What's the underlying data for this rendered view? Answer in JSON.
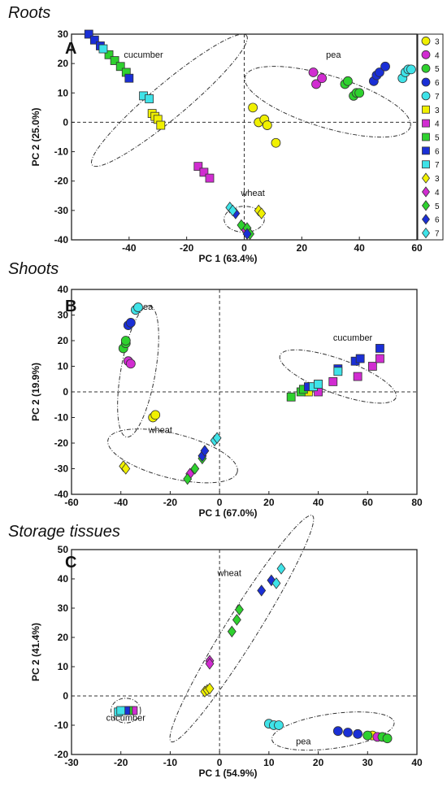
{
  "chart_data": [
    {
      "type": "scatter",
      "title": "Roots",
      "panel": "A",
      "xlabel": "PC 1 (63.4%)",
      "ylabel": "PC 2 (25.0%)",
      "xlim": [
        -60,
        60
      ],
      "ylim": [
        -40,
        30
      ],
      "xticks": [
        -40,
        -20,
        0,
        20,
        40,
        60
      ],
      "yticks": [
        -40,
        -30,
        -20,
        -10,
        0,
        10,
        20,
        30
      ],
      "legend": {
        "placement": "right",
        "entries": [
          {
            "shape": "circle",
            "label": "3"
          },
          {
            "shape": "circle",
            "label": "4"
          },
          {
            "shape": "circle",
            "label": "5"
          },
          {
            "shape": "circle",
            "label": "6"
          },
          {
            "shape": "circle",
            "label": "7"
          },
          {
            "shape": "square",
            "label": "3"
          },
          {
            "shape": "square",
            "label": "4"
          },
          {
            "shape": "square",
            "label": "5"
          },
          {
            "shape": "square",
            "label": "6"
          },
          {
            "shape": "square",
            "label": "7"
          },
          {
            "shape": "diamond",
            "label": "3"
          },
          {
            "shape": "diamond",
            "label": "4"
          },
          {
            "shape": "diamond",
            "label": "5"
          },
          {
            "shape": "diamond",
            "label": "6"
          },
          {
            "shape": "diamond",
            "label": "7"
          }
        ]
      },
      "groups": [
        {
          "label": "cucumber",
          "ellipse": {
            "cx": -26,
            "cy": 7.5,
            "rx": 35,
            "ry": 6,
            "angle": -40
          },
          "label_at": [
            -35,
            22
          ]
        },
        {
          "label": "pea",
          "ellipse": {
            "cx": 29,
            "cy": 7,
            "rx": 30,
            "ry": 9,
            "angle": 17
          },
          "label_at": [
            31,
            22
          ]
        },
        {
          "label": "wheat",
          "ellipse": {
            "cx": 0,
            "cy": -33,
            "rx": 7,
            "ry": 4.5,
            "angle": 0
          },
          "label_at": [
            3,
            -25
          ]
        }
      ],
      "series": [
        {
          "shape": "circle",
          "level": "3",
          "points": [
            [
              3,
              5
            ],
            [
              5,
              0
            ],
            [
              7,
              1
            ],
            [
              8,
              -1
            ],
            [
              11,
              -7
            ]
          ]
        },
        {
          "shape": "circle",
          "level": "4",
          "points": [
            [
              24,
              17
            ],
            [
              25,
              13
            ],
            [
              27,
              15
            ]
          ]
        },
        {
          "shape": "circle",
          "level": "5",
          "points": [
            [
              35,
              13
            ],
            [
              36,
              14
            ],
            [
              38,
              9
            ],
            [
              39,
              10
            ],
            [
              40,
              10
            ]
          ]
        },
        {
          "shape": "circle",
          "level": "6",
          "points": [
            [
              45,
              14
            ],
            [
              46,
              16
            ],
            [
              47,
              17
            ],
            [
              49,
              19
            ]
          ]
        },
        {
          "shape": "circle",
          "level": "7",
          "points": [
            [
              55,
              15
            ],
            [
              56,
              17
            ],
            [
              57,
              18
            ],
            [
              58,
              18
            ]
          ]
        },
        {
          "shape": "square",
          "level": "3",
          "points": [
            [
              -32,
              3
            ],
            [
              -31,
              2
            ],
            [
              -30,
              1
            ],
            [
              -29,
              -1
            ]
          ]
        },
        {
          "shape": "square",
          "level": "4",
          "points": [
            [
              -16,
              -15
            ],
            [
              -14,
              -17
            ],
            [
              -12,
              -19
            ]
          ]
        },
        {
          "shape": "square",
          "level": "5",
          "points": [
            [
              -47,
              23
            ],
            [
              -45,
              21
            ],
            [
              -43,
              19
            ],
            [
              -41,
              17
            ]
          ]
        },
        {
          "shape": "square",
          "level": "6",
          "points": [
            [
              -54,
              30
            ],
            [
              -52,
              28
            ],
            [
              -50,
              26
            ],
            [
              -40,
              15
            ]
          ]
        },
        {
          "shape": "square",
          "level": "7",
          "points": [
            [
              -49,
              25
            ],
            [
              -35,
              9
            ],
            [
              -33,
              8
            ]
          ]
        },
        {
          "shape": "diamond",
          "level": "3",
          "points": [
            [
              5,
              -30
            ],
            [
              6,
              -31
            ]
          ]
        },
        {
          "shape": "diamond",
          "level": "4",
          "points": [
            [
              0,
              -36
            ]
          ]
        },
        {
          "shape": "diamond",
          "level": "5",
          "points": [
            [
              -1,
              -35
            ],
            [
              1,
              -36
            ],
            [
              2,
              -38
            ]
          ]
        },
        {
          "shape": "diamond",
          "level": "6",
          "points": [
            [
              -3,
              -31
            ],
            [
              1,
              -38
            ]
          ]
        },
        {
          "shape": "diamond",
          "level": "7",
          "points": [
            [
              -5,
              -29
            ],
            [
              -4,
              -30
            ]
          ]
        }
      ]
    },
    {
      "type": "scatter",
      "title": "Shoots",
      "panel": "B",
      "xlabel": "PC 1 (67.0%)",
      "ylabel": "PC 2 (19.9%)",
      "xlim": [
        -60,
        80
      ],
      "ylim": [
        -40,
        40
      ],
      "xticks": [
        -60,
        -40,
        -20,
        0,
        20,
        40,
        60,
        80
      ],
      "yticks": [
        -40,
        -30,
        -20,
        -10,
        0,
        10,
        20,
        30,
        40
      ],
      "groups": [
        {
          "label": "pea",
          "ellipse": {
            "cx": -33,
            "cy": 8,
            "rx": 27,
            "ry": 7,
            "angle": -80
          },
          "label_at": [
            -30,
            32
          ]
        },
        {
          "label": "wheat",
          "ellipse": {
            "cx": -19,
            "cy": -25,
            "rx": 27,
            "ry": 9,
            "angle": 14
          },
          "label_at": [
            -24,
            -16
          ]
        },
        {
          "label": "cucumber",
          "ellipse": {
            "cx": 48,
            "cy": 6,
            "rx": 25,
            "ry": 7,
            "angle": 20
          },
          "label_at": [
            54,
            20
          ]
        }
      ],
      "series": [
        {
          "shape": "circle",
          "level": "3",
          "points": [
            [
              -27,
              -10
            ],
            [
              -26,
              -9
            ]
          ]
        },
        {
          "shape": "circle",
          "level": "4",
          "points": [
            [
              -37,
              12
            ],
            [
              -36,
              11
            ]
          ]
        },
        {
          "shape": "circle",
          "level": "5",
          "points": [
            [
              -39,
              17
            ],
            [
              -38,
              19
            ],
            [
              -38,
              20
            ]
          ]
        },
        {
          "shape": "circle",
          "level": "6",
          "points": [
            [
              -37,
              26
            ],
            [
              -36,
              27
            ]
          ]
        },
        {
          "shape": "circle",
          "level": "7",
          "points": [
            [
              -34,
              32
            ],
            [
              -33,
              33
            ]
          ]
        },
        {
          "shape": "square",
          "level": "3",
          "points": [
            [
              35,
              1
            ],
            [
              36,
              0
            ]
          ]
        },
        {
          "shape": "square",
          "level": "4",
          "points": [
            [
              40,
              0
            ],
            [
              46,
              4
            ],
            [
              56,
              6
            ],
            [
              62,
              10
            ],
            [
              65,
              13
            ]
          ]
        },
        {
          "shape": "square",
          "level": "5",
          "points": [
            [
              29,
              -2
            ],
            [
              33,
              0
            ],
            [
              34,
              1
            ]
          ]
        },
        {
          "shape": "square",
          "level": "6",
          "points": [
            [
              36,
              2
            ],
            [
              40,
              3
            ],
            [
              48,
              9
            ],
            [
              55,
              12
            ],
            [
              57,
              13
            ],
            [
              65,
              17
            ]
          ]
        },
        {
          "shape": "square",
          "level": "7",
          "points": [
            [
              38,
              2
            ],
            [
              40,
              3
            ],
            [
              48,
              8
            ]
          ]
        },
        {
          "shape": "diamond",
          "level": "3",
          "points": [
            [
              -39,
              -29
            ],
            [
              -38,
              -30
            ]
          ]
        },
        {
          "shape": "diamond",
          "level": "4",
          "points": [
            [
              -12,
              -32
            ]
          ]
        },
        {
          "shape": "diamond",
          "level": "5",
          "points": [
            [
              -13,
              -34
            ],
            [
              -10,
              -30
            ],
            [
              -7,
              -26
            ]
          ]
        },
        {
          "shape": "diamond",
          "level": "6",
          "points": [
            [
              -7,
              -25
            ],
            [
              -6,
              -23
            ]
          ]
        },
        {
          "shape": "diamond",
          "level": "7",
          "points": [
            [
              -2,
              -19
            ],
            [
              -1,
              -18
            ]
          ]
        }
      ]
    },
    {
      "type": "scatter",
      "title": "Storage tissues",
      "panel": "C",
      "xlabel": "PC 1 (54.9%)",
      "ylabel": "PC 2 (41.4%)",
      "xlim": [
        -30,
        40
      ],
      "ylim": [
        -20,
        50
      ],
      "xticks": [
        -30,
        -20,
        -10,
        0,
        10,
        20,
        30,
        40
      ],
      "yticks": [
        -20,
        -10,
        0,
        10,
        20,
        30,
        40,
        50
      ],
      "groups": [
        {
          "label": "wheat",
          "ellipse": {
            "cx": 4.5,
            "cy": 23,
            "rx": 27,
            "ry": 3.2,
            "angle": -58
          },
          "label_at": [
            2,
            41
          ]
        },
        {
          "label": "pea",
          "ellipse": {
            "cx": 23,
            "cy": -12,
            "rx": 12.5,
            "ry": 3.5,
            "angle": -8
          },
          "label_at": [
            17,
            -16.5
          ]
        },
        {
          "label": "cucumber",
          "ellipse": {
            "cx": -19,
            "cy": -5,
            "rx": 3,
            "ry": 2.5,
            "angle": 0
          },
          "label_at": [
            -19,
            -8.5
          ]
        }
      ],
      "series": [
        {
          "shape": "circle",
          "level": "3",
          "points": [
            [
              31,
              -13.5
            ]
          ]
        },
        {
          "shape": "circle",
          "level": "4",
          "points": [
            [
              32,
              -14
            ]
          ]
        },
        {
          "shape": "circle",
          "level": "5",
          "points": [
            [
              30,
              -13.5
            ],
            [
              33,
              -14
            ],
            [
              34,
              -14.5
            ]
          ]
        },
        {
          "shape": "circle",
          "level": "6",
          "points": [
            [
              24,
              -12
            ],
            [
              26,
              -12.5
            ],
            [
              28,
              -13
            ]
          ]
        },
        {
          "shape": "circle",
          "level": "7",
          "points": [
            [
              10,
              -9.5
            ],
            [
              11,
              -10
            ],
            [
              12,
              -10
            ]
          ]
        },
        {
          "shape": "square",
          "level": "3",
          "points": [
            [
              -18,
              -5
            ]
          ]
        },
        {
          "shape": "square",
          "level": "4",
          "points": [
            [
              -17.5,
              -5
            ]
          ]
        },
        {
          "shape": "square",
          "level": "5",
          "points": [
            [
              -18.5,
              -5
            ]
          ]
        },
        {
          "shape": "square",
          "level": "6",
          "points": [
            [
              -19,
              -5
            ]
          ]
        },
        {
          "shape": "square",
          "level": "7",
          "points": [
            [
              -20.5,
              -5.5
            ],
            [
              -20,
              -5
            ]
          ]
        },
        {
          "shape": "diamond",
          "level": "3",
          "points": [
            [
              -3,
              1.5
            ],
            [
              -2.5,
              2
            ],
            [
              -2,
              2.5
            ]
          ]
        },
        {
          "shape": "diamond",
          "level": "4",
          "points": [
            [
              -2,
              12
            ],
            [
              -2,
              11
            ]
          ]
        },
        {
          "shape": "diamond",
          "level": "5",
          "points": [
            [
              2.5,
              22
            ],
            [
              3.5,
              26
            ],
            [
              4,
              29.5
            ]
          ]
        },
        {
          "shape": "diamond",
          "level": "6",
          "points": [
            [
              8.5,
              36
            ],
            [
              10.5,
              39.5
            ]
          ]
        },
        {
          "shape": "diamond",
          "level": "7",
          "points": [
            [
              11.5,
              38.5
            ],
            [
              12.5,
              43.5
            ]
          ]
        }
      ]
    }
  ],
  "colors": {
    "3": "#f0f000",
    "4": "#d12cd1",
    "5": "#2ed12e",
    "6": "#1a2fd6",
    "7": "#3fe3e8"
  }
}
